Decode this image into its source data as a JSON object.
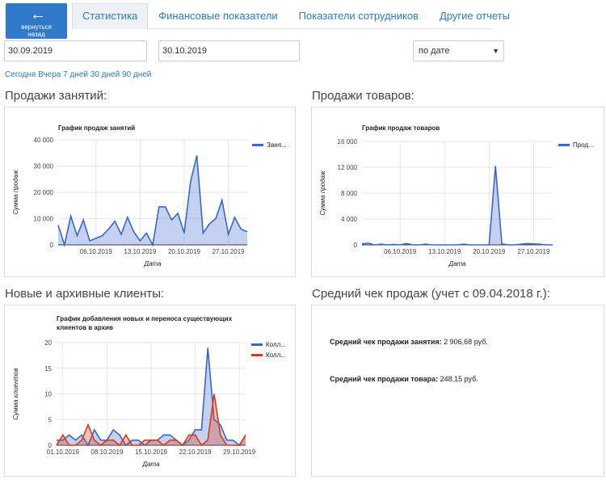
{
  "nav": {
    "back_label_1": "вернуться",
    "back_label_2": "назад",
    "tabs": [
      "Статистика",
      "Финансовые показатели",
      "Показатели сотрудников",
      "Другие отчеты"
    ]
  },
  "filters": {
    "date_from": "30.09.2019",
    "date_to": "30.10.2019",
    "sort": "по дате",
    "quick": [
      "Сегодня",
      "Вчера",
      "7 дней",
      "30 дней",
      "90 дней"
    ]
  },
  "sections": {
    "lessons": "Продажи занятий:",
    "goods": "Продажи товаров:",
    "clients": "Новые и архивные клиенты:",
    "avg": "Средний чек продаж (учет с 09.04.2018 г.):"
  },
  "avg": {
    "lesson_label": "Средний чек продажи занятия:",
    "lesson_value": "2 906,68 руб.",
    "goods_label": "Средний чек продажи товара:",
    "goods_value": "248,15 руб."
  },
  "colors": {
    "blue": "#3a66cc",
    "red": "#dc3912",
    "accent": "#2f79c8"
  },
  "chart_data": [
    {
      "type": "area",
      "title": "График продаж занятий",
      "xlabel": "Дата",
      "ylabel": "Сумма продаж",
      "ylim": [
        0,
        40000
      ],
      "yticks": [
        "0",
        "10 000",
        "20 000",
        "30 000",
        "40 000"
      ],
      "xticks": [
        "06.10.2019",
        "13.10.2019",
        "20.10.2019",
        "27.10.2019"
      ],
      "tick_index": [
        6,
        13,
        20,
        27
      ],
      "n_points": 31,
      "series": [
        {
          "name": "Заня...",
          "values": [
            7500,
            0,
            11000,
            3500,
            9500,
            1500,
            2500,
            3500,
            6000,
            9000,
            4000,
            10500,
            5000,
            1500,
            4500,
            0,
            14500,
            14500,
            9500,
            12000,
            4500,
            24000,
            34000,
            4500,
            8000,
            10000,
            17000,
            4000,
            10500,
            6000,
            5000
          ]
        }
      ],
      "grid": true,
      "legend": "right"
    },
    {
      "type": "area",
      "title": "График продаж товаров",
      "xlabel": "Дата",
      "ylabel": "Сумма продаж",
      "ylim": [
        0,
        16000
      ],
      "yticks": [
        "0",
        "4 000",
        "8 000",
        "12 000",
        "16 000"
      ],
      "xticks": [
        "06.10.2019",
        "13.10.2019",
        "20.10.2019",
        "27.10.2019"
      ],
      "tick_index": [
        6,
        13,
        20,
        27
      ],
      "n_points": 31,
      "series": [
        {
          "name": "Прод...",
          "values": [
            150,
            250,
            0,
            100,
            0,
            80,
            0,
            200,
            0,
            0,
            100,
            0,
            0,
            0,
            0,
            0,
            100,
            0,
            0,
            0,
            0,
            12200,
            150,
            0,
            0,
            100,
            200,
            150,
            100,
            0,
            0
          ]
        }
      ],
      "grid": true,
      "legend": "right"
    },
    {
      "type": "area",
      "title": "График добавления новых и переноса существующих клиентов в архив",
      "title_line1": "График добавления новых и переноса существующих",
      "title_line2": "клиентов в архив",
      "xlabel": "Дата",
      "ylabel": "Сумма клиентов",
      "ylim": [
        0,
        20
      ],
      "yticks": [
        "0",
        "5",
        "10",
        "15",
        "20"
      ],
      "xticks": [
        "01.10.2019",
        "08.10.2019",
        "15.10.2019",
        "22.10.2019",
        "29.10.2019"
      ],
      "tick_index": [
        1,
        8,
        15,
        22,
        29
      ],
      "n_points": 31,
      "series": [
        {
          "name": "Колл...",
          "color": "#3a66cc",
          "values": [
            1,
            1,
            2,
            1,
            2,
            0,
            3,
            1,
            1,
            3,
            2,
            0,
            1,
            1,
            0,
            1,
            1,
            2,
            2,
            1,
            0,
            1,
            3,
            3,
            19,
            5,
            4,
            1,
            1,
            0,
            2
          ]
        },
        {
          "name": "Колл...",
          "color": "#dc3912",
          "values": [
            0,
            2,
            0,
            0,
            1,
            4,
            1,
            0,
            1,
            1,
            0,
            2,
            0,
            0,
            1,
            1,
            1,
            0,
            1,
            1,
            0,
            2,
            2,
            0,
            1,
            10,
            2,
            0,
            0,
            0,
            2
          ]
        }
      ],
      "grid": true,
      "legend": "right"
    }
  ]
}
